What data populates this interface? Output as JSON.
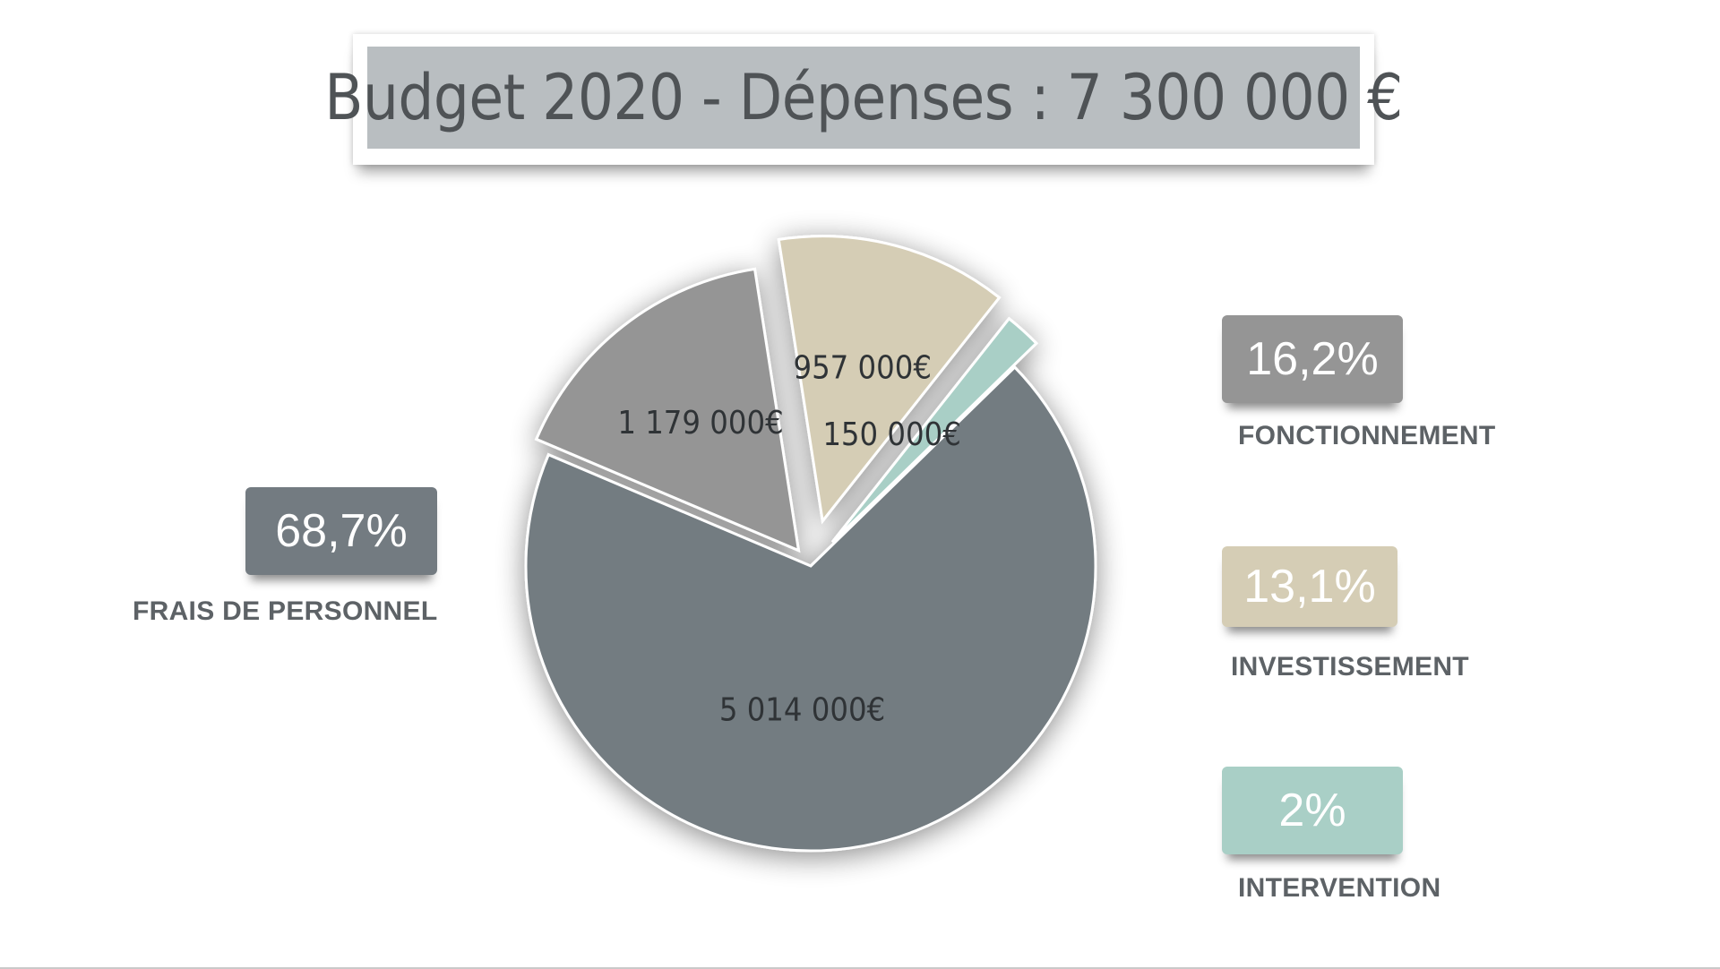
{
  "chart_data": {
    "type": "pie",
    "title": "Budget 2020 - Dépenses : 7 300 000 €",
    "slices": [
      {
        "name": "FONCTIONNEMENT",
        "value": 1179000,
        "value_label": "1 179 000€",
        "percent_label": "16,2%",
        "color": "#959595"
      },
      {
        "name": "INVESTISSEMENT",
        "value": 957000,
        "value_label": "957 000€",
        "percent_label": "13,1%",
        "color": "#d5cdb5"
      },
      {
        "name": "INTERVENTION",
        "value": 150000,
        "value_label": "150 000€",
        "percent_label": "2%",
        "color": "#a9cfc6"
      },
      {
        "name": "FRAIS DE PERSONNEL",
        "value": 5014000,
        "value_label": "5 014 000€",
        "percent_label": "68,7%",
        "color": "#737b81"
      }
    ]
  }
}
